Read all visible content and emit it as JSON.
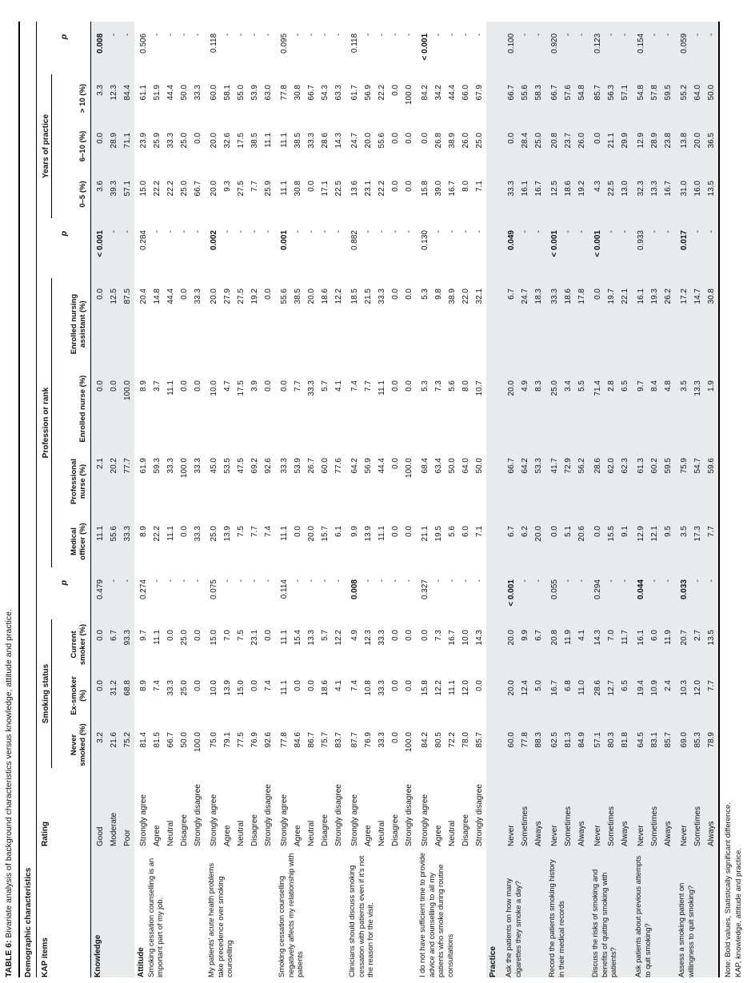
{
  "title": {
    "label": "TABLE 6:",
    "text": "Bivariate analysis of background characteristics versus knowledge, attitude and practice."
  },
  "subheader": "Demographic characteristics",
  "header": {
    "kap_items": "KAP items",
    "rating": "Rating",
    "p": "p",
    "bands": [
      {
        "label": "Smoking status",
        "columns": [
          "Never smoked (%)",
          "Ex-smoker (%)",
          "Current smoker (%)"
        ]
      },
      {
        "label": "Profession or rank",
        "columns": [
          "Medical officer (%)",
          "Professional nurse (%)",
          "Enrolled nurse (%)",
          "Enrolled nursing assistant (%)"
        ]
      },
      {
        "label": "Years of practice",
        "columns": [
          "0–5 (%)",
          "6–10 (%)",
          "> 10 (%)"
        ]
      }
    ]
  },
  "colors": {
    "shade": "#e9eaee",
    "rule": "#000000"
  },
  "groups": [
    {
      "heading": "Knowledge",
      "item": "",
      "shaded": true,
      "p_smoking": {
        "v": "0.479",
        "bold": false
      },
      "p_profession": {
        "v": "< 0.001",
        "bold": true
      },
      "p_years": {
        "v": "0.008",
        "bold": true
      },
      "rows": [
        {
          "rating": "Good",
          "values": [
            "3.2",
            "0.0",
            "0.0",
            "11.1",
            "2.1",
            "0.0",
            "0.0",
            "3.6",
            "0.0",
            "3.3"
          ]
        },
        {
          "rating": "Moderate",
          "values": [
            "21.6",
            "31.2",
            "6.7",
            "55.6",
            "20.2",
            "0.0",
            "12.5",
            "39.3",
            "28.9",
            "12.3"
          ]
        },
        {
          "rating": "Poor",
          "values": [
            "75.2",
            "68.8",
            "93.3",
            "33.3",
            "77.7",
            "100.0",
            "87.5",
            "57.1",
            "71.1",
            "84.4"
          ]
        }
      ]
    },
    {
      "heading": "Attitude",
      "item": "Smoking cessation counselling is an important part of my job.",
      "shaded": false,
      "p_smoking": {
        "v": "0.274",
        "bold": false
      },
      "p_profession": {
        "v": "0.284",
        "bold": false
      },
      "p_years": {
        "v": "0.506",
        "bold": false
      },
      "rows": [
        {
          "rating": "Strongly agree",
          "values": [
            "81.4",
            "8.9",
            "9.7",
            "8.9",
            "61.9",
            "8.9",
            "20.4",
            "15.0",
            "23.9",
            "61.1"
          ]
        },
        {
          "rating": "Agree",
          "values": [
            "81.5",
            "7.4",
            "11.1",
            "22.2",
            "59.3",
            "3.7",
            "14.8",
            "22.2",
            "25.9",
            "51.9"
          ]
        },
        {
          "rating": "Neutral",
          "values": [
            "66.7",
            "33.3",
            "0.0",
            "11.1",
            "33.3",
            "11.1",
            "44.4",
            "22.2",
            "33.3",
            "44.4"
          ]
        },
        {
          "rating": "Disagree",
          "values": [
            "50.0",
            "25.0",
            "25.0",
            "0.0",
            "100.0",
            "0.0",
            "0.0",
            "25.0",
            "25.0",
            "50.0"
          ]
        },
        {
          "rating": "Strongly disagree",
          "values": [
            "100.0",
            "0.0",
            "0.0",
            "33.3",
            "33.3",
            "0.0",
            "33.3",
            "66.7",
            "0.0",
            "33.3"
          ]
        }
      ]
    },
    {
      "heading": "",
      "item": "My patients’ acute health problems take precedence over smoking counselling",
      "shaded": false,
      "p_smoking": {
        "v": "0.075",
        "bold": false
      },
      "p_profession": {
        "v": "0.002",
        "bold": true
      },
      "p_years": {
        "v": "0.118",
        "bold": false
      },
      "rows": [
        {
          "rating": "Strongly agree",
          "values": [
            "75.0",
            "10.0",
            "15.0",
            "25.0",
            "45.0",
            "10.0",
            "20.0",
            "20.0",
            "20.0",
            "60.0"
          ]
        },
        {
          "rating": "Agree",
          "values": [
            "79.1",
            "13.9",
            "7.0",
            "13.9",
            "53.5",
            "4.7",
            "27.9",
            "9.3",
            "32.6",
            "58.1"
          ]
        },
        {
          "rating": "Neutral",
          "values": [
            "77.5",
            "15.0",
            "7.5",
            "7.5",
            "47.5",
            "17.5",
            "27.5",
            "27.5",
            "17.5",
            "55.0"
          ]
        },
        {
          "rating": "Disagree",
          "values": [
            "76.9",
            "0.0",
            "23.1",
            "7.7",
            "69.2",
            "3.9",
            "19.2",
            "7.7",
            "38.5",
            "53.9"
          ]
        },
        {
          "rating": "Strongly disagree",
          "values": [
            "92.6",
            "7.4",
            "0.0",
            "7.4",
            "92.6",
            "0.0",
            "0.0",
            "25.9",
            "11.1",
            "63.0"
          ]
        }
      ]
    },
    {
      "heading": "",
      "item": "Smoking cessation counselling negatively affects my relationship with patients",
      "shaded": false,
      "p_smoking": {
        "v": "0.114",
        "bold": false
      },
      "p_profession": {
        "v": "0.001",
        "bold": true
      },
      "p_years": {
        "v": "0.095",
        "bold": false
      },
      "rows": [
        {
          "rating": "Strongly agree",
          "values": [
            "77.8",
            "11.1",
            "11.1",
            "11.1",
            "33.3",
            "0.0",
            "55.6",
            "11.1",
            "11.1",
            "77.8"
          ]
        },
        {
          "rating": "Agree",
          "values": [
            "84.6",
            "0.0",
            "15.4",
            "0.0",
            "53.9",
            "7.7",
            "38.5",
            "30.8",
            "38.5",
            "30.8"
          ]
        },
        {
          "rating": "Neutral",
          "values": [
            "86.7",
            "0.0",
            "13.3",
            "20.0",
            "26.7",
            "33.3",
            "20.0",
            "0.0",
            "33.3",
            "66.7"
          ]
        },
        {
          "rating": "Disagree",
          "values": [
            "75.7",
            "18.6",
            "5.7",
            "15.7",
            "60.0",
            "5.7",
            "18.6",
            "17.1",
            "28.6",
            "54.3"
          ]
        },
        {
          "rating": "Strongly disagree",
          "values": [
            "83.7",
            "4.1",
            "12.2",
            "6.1",
            "77.6",
            "4.1",
            "12.2",
            "22.5",
            "14.3",
            "63.3"
          ]
        }
      ]
    },
    {
      "heading": "",
      "item": "Clinicians should discuss smoking cessation with patients even if it’s not the reason for the visit.",
      "shaded": false,
      "p_smoking": {
        "v": "0.008",
        "bold": true
      },
      "p_profession": {
        "v": "0.882",
        "bold": false
      },
      "p_years": {
        "v": "0.118",
        "bold": false
      },
      "rows": [
        {
          "rating": "Strongly agree",
          "values": [
            "87.7",
            "7.4",
            "4.9",
            "9.9",
            "64.2",
            "7.4",
            "18.5",
            "13.6",
            "24.7",
            "61.7"
          ]
        },
        {
          "rating": "Agree",
          "values": [
            "76.9",
            "10.8",
            "12.3",
            "13.9",
            "56.9",
            "7.7",
            "21.5",
            "23.1",
            "20.0",
            "56.9"
          ]
        },
        {
          "rating": "Neutral",
          "values": [
            "33.3",
            "33.3",
            "33.3",
            "11.1",
            "44.4",
            "11.1",
            "33.3",
            "22.2",
            "55.6",
            "22.2"
          ]
        },
        {
          "rating": "Disagree",
          "values": [
            "0.0",
            "0.0",
            "0.0",
            "0.0",
            "0.0",
            "0.0",
            "0.0",
            "0.0",
            "0.0",
            "0.0"
          ]
        },
        {
          "rating": "Strongly disagree",
          "values": [
            "100.0",
            "0.0",
            "0.0",
            "0.0",
            "100.0",
            "0.0",
            "0.0",
            "0.0",
            "0.0",
            "100.0"
          ]
        }
      ]
    },
    {
      "heading": "",
      "item": "I do not have sufficient time to provide advice and counselling to all my patients who smoke during routine consultations",
      "shaded": false,
      "p_smoking": {
        "v": "0.327",
        "bold": false
      },
      "p_profession": {
        "v": "0.130",
        "bold": false
      },
      "p_years": {
        "v": "< 0.001",
        "bold": true
      },
      "rows": [
        {
          "rating": "Strongly agree",
          "values": [
            "84.2",
            "15.8",
            "0.0",
            "21.1",
            "68.4",
            "5.3",
            "5.3",
            "15.8",
            "0.0",
            "84.2"
          ]
        },
        {
          "rating": "Agree",
          "values": [
            "80.5",
            "12.2",
            "7.3",
            "19.5",
            "63.4",
            "7.3",
            "9.8",
            "39.0",
            "26.8",
            "34.2"
          ]
        },
        {
          "rating": "Neutral",
          "values": [
            "72.2",
            "11.1",
            "16.7",
            "5.6",
            "50.0",
            "5.6",
            "38.9",
            "16.7",
            "38.9",
            "44.4"
          ]
        },
        {
          "rating": "Disagree",
          "values": [
            "78.0",
            "12.0",
            "10.0",
            "6.0",
            "64.0",
            "8.0",
            "22.0",
            "8.0",
            "26.0",
            "66.0"
          ]
        },
        {
          "rating": "Strongly disagree",
          "values": [
            "85.7",
            "0.0",
            "14.3",
            "7.1",
            "50.0",
            "10.7",
            "32.1",
            "7.1",
            "25.0",
            "67.9"
          ]
        }
      ]
    },
    {
      "heading": "Practice",
      "item": "",
      "shaded": true,
      "heading_only": true,
      "rows": []
    },
    {
      "heading": "",
      "item": "Ask the patients on how many cigarettes they smoke a day?",
      "shaded": true,
      "p_smoking": {
        "v": "< 0.001",
        "bold": true
      },
      "p_profession": {
        "v": "0.049",
        "bold": true
      },
      "p_years": {
        "v": "0.100",
        "bold": false
      },
      "rows": [
        {
          "rating": "Never",
          "values": [
            "60.0",
            "20.0",
            "20.0",
            "6.7",
            "66.7",
            "20.0",
            "6.7",
            "33.3",
            "0.0",
            "66.7"
          ]
        },
        {
          "rating": "Sometimes",
          "values": [
            "77.8",
            "12.4",
            "9.9",
            "6.2",
            "64.2",
            "4.9",
            "24.7",
            "16.1",
            "28.4",
            "55.6"
          ]
        },
        {
          "rating": "Always",
          "values": [
            "88.3",
            "5.0",
            "6.7",
            "20.0",
            "53.3",
            "8.3",
            "18.3",
            "16.7",
            "25.0",
            "58.3"
          ]
        }
      ]
    },
    {
      "heading": "",
      "item": "Record the patients smoking history in their medical records",
      "shaded": true,
      "p_smoking": {
        "v": "0.055",
        "bold": false
      },
      "p_profession": {
        "v": "< 0.001",
        "bold": true
      },
      "p_years": {
        "v": "0.920",
        "bold": false
      },
      "rows": [
        {
          "rating": "Never",
          "values": [
            "62.5",
            "16.7",
            "20.8",
            "0.0",
            "41.7",
            "25.0",
            "33.3",
            "12.5",
            "20.8",
            "66.7"
          ]
        },
        {
          "rating": "Sometimes",
          "values": [
            "81.3",
            "6.8",
            "11.9",
            "5.1",
            "72.9",
            "3.4",
            "18.6",
            "18.6",
            "23.7",
            "57.6"
          ]
        },
        {
          "rating": "Always",
          "values": [
            "84.9",
            "11.0",
            "4.1",
            "20.6",
            "56.2",
            "5.5",
            "17.8",
            "19.2",
            "26.0",
            "54.8"
          ]
        }
      ]
    },
    {
      "heading": "",
      "item": "Discuss the risks of smoking and benefits of quitting smoking with patients?",
      "shaded": true,
      "p_smoking": {
        "v": "0.294",
        "bold": false
      },
      "p_profession": {
        "v": "< 0.001",
        "bold": true
      },
      "p_years": {
        "v": "0.123",
        "bold": false
      },
      "rows": [
        {
          "rating": "Never",
          "values": [
            "57.1",
            "28.6",
            "14.3",
            "0.0",
            "28.6",
            "71.4",
            "0.0",
            "4.3",
            "0.0",
            "85.7"
          ]
        },
        {
          "rating": "Sometimes",
          "values": [
            "80.3",
            "12.7",
            "7.0",
            "15.5",
            "62.0",
            "2.8",
            "19.7",
            "22.5",
            "21.1",
            "56.3"
          ]
        },
        {
          "rating": "Always",
          "values": [
            "81.8",
            "6.5",
            "11.7",
            "9.1",
            "62.3",
            "6.5",
            "22.1",
            "13.0",
            "29.9",
            "57.1"
          ]
        }
      ]
    },
    {
      "heading": "",
      "item": "Ask patients about previous attempts to quit smoking?",
      "shaded": true,
      "p_smoking": {
        "v": "0.044",
        "bold": true
      },
      "p_profession": {
        "v": "0.933",
        "bold": false
      },
      "p_years": {
        "v": "0.154",
        "bold": false
      },
      "rows": [
        {
          "rating": "Never",
          "values": [
            "64.5",
            "19.4",
            "16.1",
            "12.9",
            "61.3",
            "9.7",
            "16.1",
            "32.3",
            "12.9",
            "54.8"
          ]
        },
        {
          "rating": "Sometimes",
          "values": [
            "83.1",
            "10.9",
            "6.0",
            "12.1",
            "60.2",
            "8.4",
            "19.3",
            "13.3",
            "28.9",
            "57.8"
          ]
        },
        {
          "rating": "Always",
          "values": [
            "85.7",
            "2.4",
            "11.9",
            "9.5",
            "59.5",
            "4.8",
            "26.2",
            "16.7",
            "23.8",
            "59.5"
          ]
        }
      ]
    },
    {
      "heading": "",
      "item": "Assess a smoking patient on willingness to quit smoking?",
      "shaded": true,
      "p_smoking": {
        "v": "0.033",
        "bold": true
      },
      "p_profession": {
        "v": "0.017",
        "bold": true
      },
      "p_years": {
        "v": "0.059",
        "bold": false
      },
      "rows": [
        {
          "rating": "Never",
          "values": [
            "69.0",
            "10.3",
            "20.7",
            "3.5",
            "75.9",
            "3.5",
            "17.2",
            "31.0",
            "13.8",
            "55.2"
          ]
        },
        {
          "rating": "Sometimes",
          "values": [
            "85.3",
            "12.0",
            "2.7",
            "17.3",
            "54.7",
            "13.3",
            "14.7",
            "16.0",
            "20.0",
            "64.0"
          ]
        },
        {
          "rating": "Always",
          "values": [
            "78.9",
            "7.7",
            "13.5",
            "7.7",
            "59.6",
            "1.9",
            "30.8",
            "13.5",
            "36.5",
            "50.0"
          ]
        }
      ]
    }
  ],
  "dash": "-",
  "notes": [
    "Note: Bold values, Statistically significant difference.",
    "KAP, knowledge, attitude and practice."
  ]
}
